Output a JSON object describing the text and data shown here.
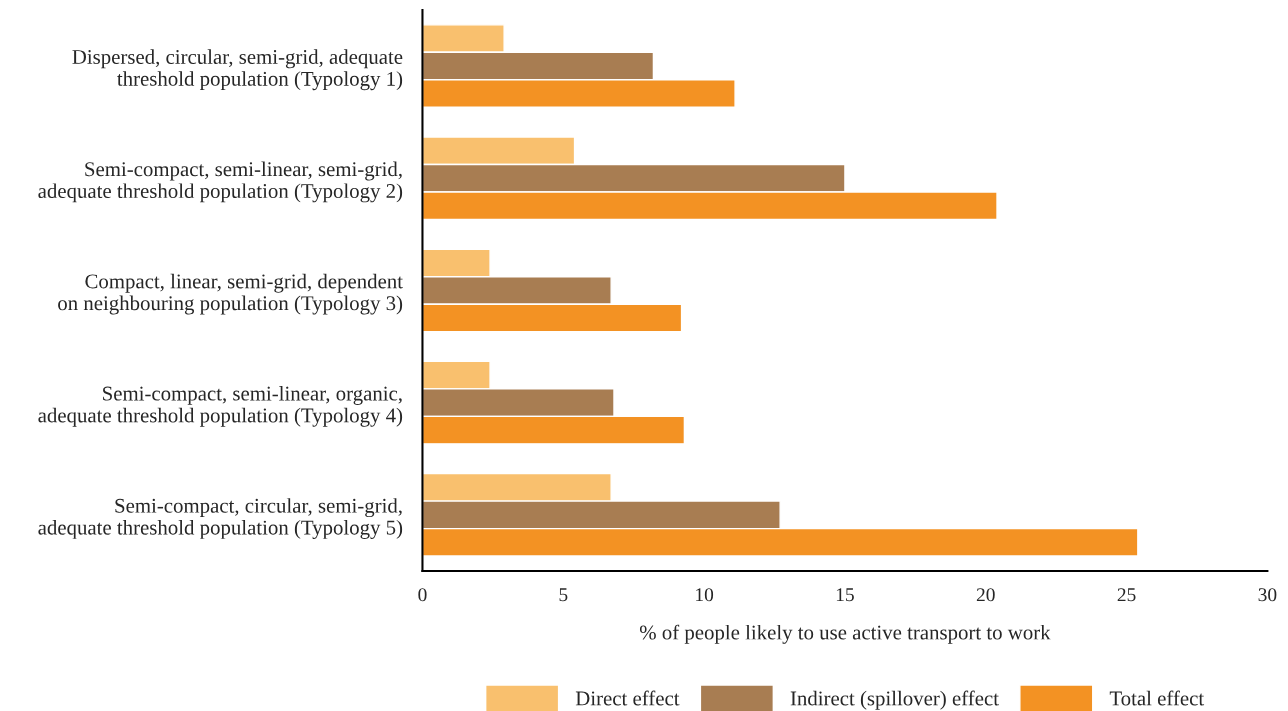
{
  "chart_data": {
    "type": "bar",
    "orientation": "horizontal",
    "xlabel": "% of people likely to use active transport to work",
    "categories": [
      "Dispersed, circular, semi-grid, adequate\nthreshold population (Typology 1)",
      "Semi-compact, semi-linear, semi-grid,\nadequate threshold population (Typology 2)",
      "Compact, linear, semi-grid, dependent\non neighbouring population (Typology 3)",
      "Semi-compact, semi-linear, organic,\nadequate threshold population (Typology 4)",
      "Semi-compact, circular, semi-grid,\nadequate threshold population (Typology 5)"
    ],
    "series": [
      {
        "name": "Direct effect",
        "color": "#f9c06e",
        "values": [
          2.9,
          5.4,
          2.4,
          2.4,
          6.7
        ]
      },
      {
        "name": "Indirect (spillover) effect",
        "color": "#a87d52",
        "values": [
          8.2,
          15.0,
          6.7,
          6.8,
          12.7
        ]
      },
      {
        "name": "Total effect",
        "color": "#f39223",
        "values": [
          11.1,
          20.4,
          9.2,
          9.3,
          25.4
        ]
      }
    ],
    "xlim": [
      0,
      30
    ],
    "xticks": [
      0,
      5,
      10,
      15,
      20,
      25,
      30
    ],
    "grid": false,
    "legend": "bottom"
  }
}
